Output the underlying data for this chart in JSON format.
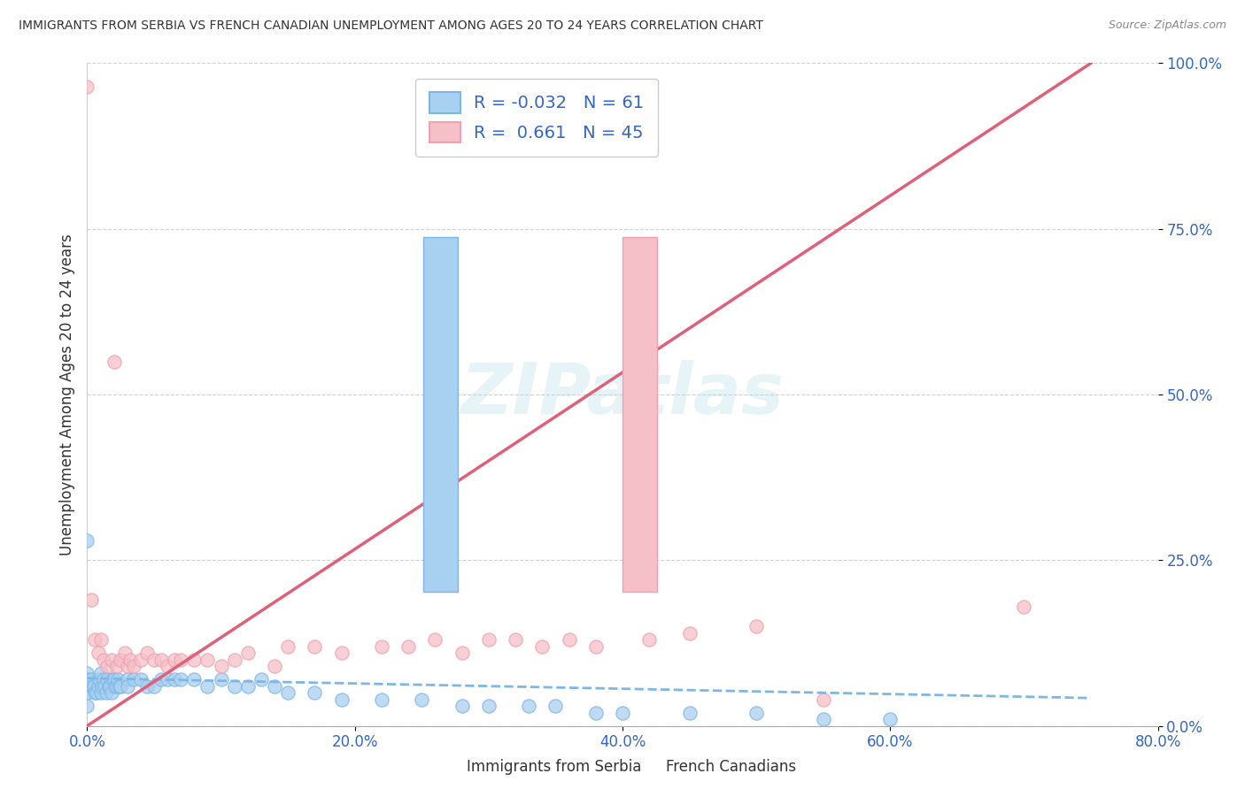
{
  "title": "IMMIGRANTS FROM SERBIA VS FRENCH CANADIAN UNEMPLOYMENT AMONG AGES 20 TO 24 YEARS CORRELATION CHART",
  "source": "Source: ZipAtlas.com",
  "ylabel": "Unemployment Among Ages 20 to 24 years",
  "legend_label1_bottom": "Immigrants from Serbia",
  "legend_label2_bottom": "French Canadians",
  "R1": -0.032,
  "N1": 61,
  "R2": 0.661,
  "N2": 45,
  "color_blue": "#7EB6E8",
  "color_blue_fill": "#A8D0F0",
  "color_pink": "#F0A0B0",
  "color_pink_fill": "#F5C0C8",
  "color_blue_line": "#7EB6E8",
  "color_pink_line": "#E0607A",
  "xlim": [
    0.0,
    0.8
  ],
  "ylim": [
    0.0,
    1.0
  ],
  "xticks": [
    0.0,
    0.2,
    0.4,
    0.6,
    0.8
  ],
  "yticks": [
    0.0,
    0.25,
    0.5,
    0.75,
    1.0
  ],
  "xtick_labels": [
    "0.0%",
    "20.0%",
    "40.0%",
    "60.0%",
    "80.0%"
  ],
  "ytick_labels": [
    "0.0%",
    "25.0%",
    "50.0%",
    "75.0%",
    "100.0%"
  ],
  "background_color": "#ffffff",
  "watermark": "ZIPatlas",
  "blue_scatter_x": [
    0.0,
    0.0,
    0.0,
    0.0,
    0.0,
    0.003,
    0.004,
    0.005,
    0.006,
    0.007,
    0.008,
    0.009,
    0.01,
    0.01,
    0.011,
    0.012,
    0.013,
    0.014,
    0.015,
    0.016,
    0.017,
    0.018,
    0.019,
    0.02,
    0.021,
    0.022,
    0.023,
    0.024,
    0.025,
    0.03,
    0.03,
    0.035,
    0.04,
    0.045,
    0.05,
    0.055,
    0.06,
    0.065,
    0.07,
    0.08,
    0.09,
    0.1,
    0.11,
    0.12,
    0.13,
    0.14,
    0.15,
    0.17,
    0.19,
    0.22,
    0.25,
    0.28,
    0.3,
    0.33,
    0.35,
    0.38,
    0.4,
    0.45,
    0.5,
    0.55,
    0.6
  ],
  "blue_scatter_y": [
    0.28,
    0.08,
    0.07,
    0.05,
    0.03,
    0.07,
    0.06,
    0.06,
    0.05,
    0.05,
    0.06,
    0.07,
    0.08,
    0.05,
    0.06,
    0.07,
    0.06,
    0.05,
    0.07,
    0.06,
    0.06,
    0.05,
    0.07,
    0.07,
    0.06,
    0.06,
    0.07,
    0.06,
    0.06,
    0.07,
    0.06,
    0.07,
    0.07,
    0.06,
    0.06,
    0.07,
    0.07,
    0.07,
    0.07,
    0.07,
    0.06,
    0.07,
    0.06,
    0.06,
    0.07,
    0.06,
    0.05,
    0.05,
    0.04,
    0.04,
    0.04,
    0.03,
    0.03,
    0.03,
    0.03,
    0.02,
    0.02,
    0.02,
    0.02,
    0.01,
    0.01
  ],
  "pink_scatter_x": [
    0.0,
    0.003,
    0.006,
    0.008,
    0.01,
    0.012,
    0.015,
    0.018,
    0.02,
    0.022,
    0.025,
    0.028,
    0.03,
    0.032,
    0.035,
    0.04,
    0.045,
    0.05,
    0.055,
    0.06,
    0.065,
    0.07,
    0.08,
    0.09,
    0.1,
    0.11,
    0.12,
    0.14,
    0.15,
    0.17,
    0.19,
    0.22,
    0.24,
    0.26,
    0.28,
    0.3,
    0.32,
    0.34,
    0.36,
    0.38,
    0.42,
    0.45,
    0.5,
    0.55,
    0.7
  ],
  "pink_scatter_y": [
    0.965,
    0.19,
    0.13,
    0.11,
    0.13,
    0.1,
    0.09,
    0.1,
    0.55,
    0.09,
    0.1,
    0.11,
    0.09,
    0.1,
    0.09,
    0.1,
    0.11,
    0.1,
    0.1,
    0.09,
    0.1,
    0.1,
    0.1,
    0.1,
    0.09,
    0.1,
    0.11,
    0.09,
    0.12,
    0.12,
    0.11,
    0.12,
    0.12,
    0.13,
    0.11,
    0.13,
    0.13,
    0.12,
    0.13,
    0.12,
    0.13,
    0.14,
    0.15,
    0.04,
    0.18
  ],
  "blue_trend_x": [
    0.0,
    0.75
  ],
  "blue_trend_y": [
    0.072,
    0.042
  ],
  "pink_trend_x": [
    0.0,
    0.75
  ],
  "pink_trend_y": [
    0.0,
    1.0
  ]
}
